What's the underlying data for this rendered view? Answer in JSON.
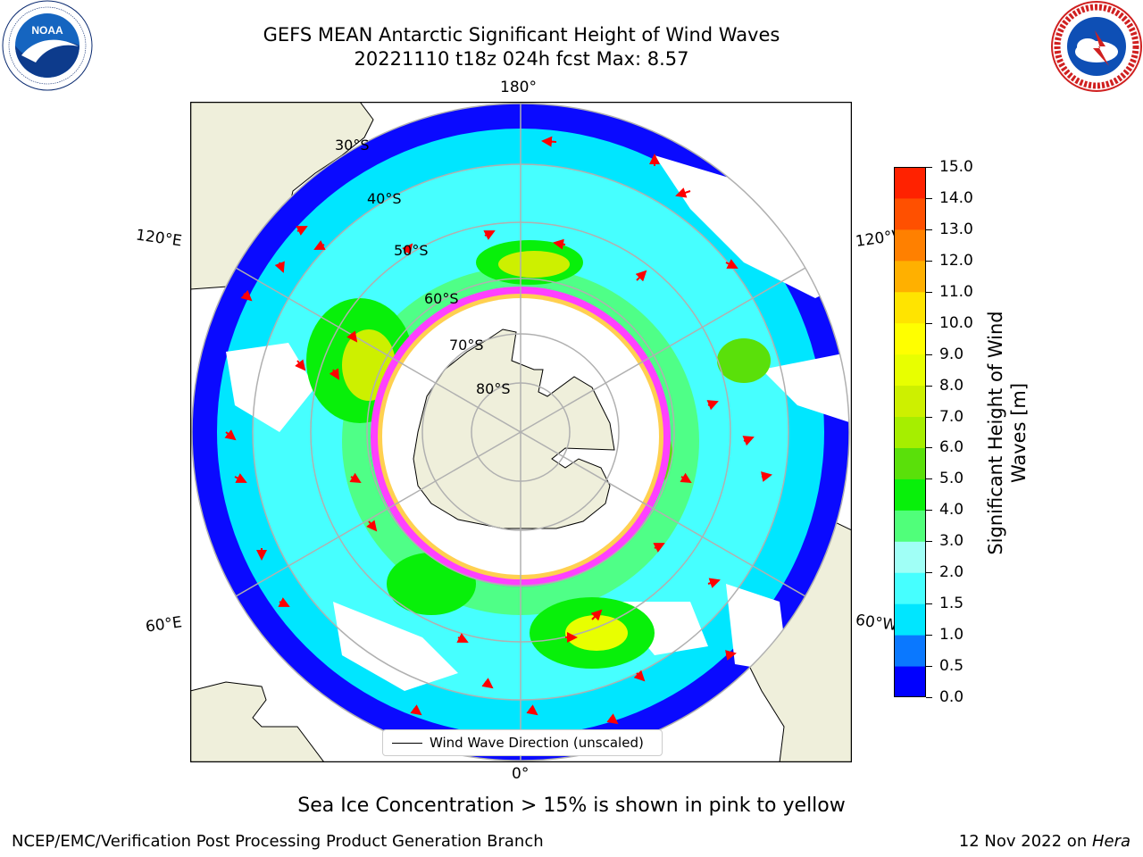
{
  "title": {
    "line1": "GEFS MEAN Antarctic Significant Height of Wind Waves",
    "line2": "20221110 t18z 024h fcst   Max: 8.57"
  },
  "logos": {
    "left": "NOAA",
    "right": "NATIONAL WEATHER SERVICE",
    "left_icon": "noaa-logo",
    "right_icon": "nws-logo"
  },
  "map": {
    "projection": "south-polar-stereographic",
    "lon_labels": [
      "180°",
      "120°E",
      "120°W",
      "60°E",
      "60°W",
      "0°"
    ],
    "lat_labels": [
      "30°S",
      "40°S",
      "50°S",
      "60°S",
      "70°S",
      "80°S"
    ],
    "colors": {
      "land": "#efefdb",
      "coast": "#000000",
      "grid": "#b0b0b0",
      "arrow": "#ff0000",
      "sea_ice": [
        "#ff40ff",
        "#ff9070",
        "#ffd050"
      ]
    }
  },
  "legend": {
    "label": "Wind Wave Direction (unscaled)"
  },
  "colorbar": {
    "label_line1": "Significant Height of Wind",
    "label_line2": "Waves [m]",
    "ticks": [
      "0.0",
      "0.5",
      "1.0",
      "1.5",
      "2.0",
      "3.0",
      "4.0",
      "5.0",
      "6.0",
      "7.0",
      "8.0",
      "9.0",
      "10.0",
      "11.0",
      "12.0",
      "13.0",
      "14.0",
      "15.0"
    ],
    "colors": [
      "#0000ff",
      "#0a78ff",
      "#00e6ff",
      "#46ffff",
      "#a0fff6",
      "#50ff7a",
      "#08f00a",
      "#5ae00a",
      "#a6ee00",
      "#cdf000",
      "#e8ff00",
      "#ffff00",
      "#ffe400",
      "#ffb000",
      "#ff8000",
      "#ff5000",
      "#ff2200"
    ]
  },
  "note": "Sea Ice Concentration > 15% is shown in pink to yellow",
  "footer": {
    "left": "NCEP/EMC/Verification Post Processing Product Generation Branch",
    "right_prefix": "12 Nov 2022 on ",
    "right_em": "Hera"
  }
}
